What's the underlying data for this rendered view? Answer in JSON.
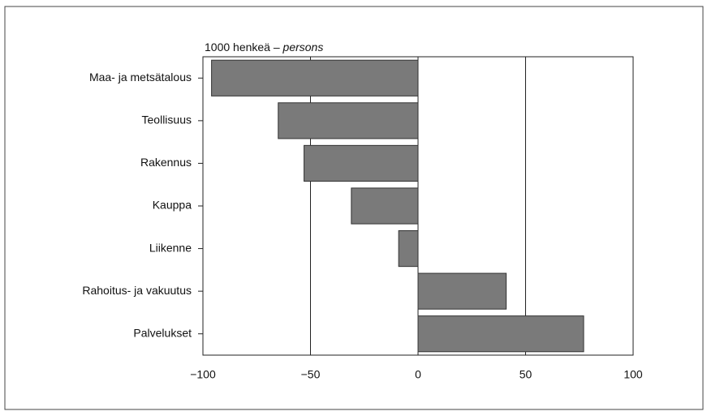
{
  "chart_data": {
    "type": "barh",
    "axis_title": "1000 henkeä –",
    "axis_title_en": "persons",
    "categories": [
      "Maa- ja metsätalous",
      "Teollisuus",
      "Rakennus",
      "Kauppa",
      "Liikenne",
      "Rahoitus- ja vakuutus",
      "Palvelukset"
    ],
    "values": [
      -96,
      -65,
      -53,
      -31,
      -9,
      41,
      77
    ],
    "color": "#7a7a7a",
    "xlim": [
      -100,
      100
    ],
    "xticks": [
      {
        "value": -100,
        "label": "−100"
      },
      {
        "value": -50,
        "label": "−50"
      },
      0,
      50,
      100
    ],
    "grid": true
  }
}
